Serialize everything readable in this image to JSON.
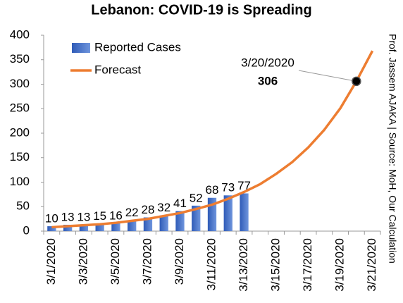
{
  "chart_data": {
    "type": "bar",
    "title": "Lebanon: COVID-19 is Spreading",
    "categories": [
      "3/1/2020",
      null,
      "3/3/2020",
      null,
      "3/5/2020",
      null,
      "3/7/2020",
      null,
      "3/9/2020",
      null,
      "3/11/2020",
      null,
      "3/13/2020",
      null,
      "3/15/2020",
      null,
      "3/17/2020",
      null,
      "3/19/2020",
      null,
      "3/21/2020"
    ],
    "series": [
      {
        "name": "Reported Cases",
        "type": "bar",
        "color": "#4472c4",
        "values": [
          10,
          13,
          13,
          15,
          16,
          22,
          28,
          32,
          41,
          52,
          68,
          73,
          77,
          null,
          null,
          null,
          null,
          null,
          null,
          null,
          null
        ]
      },
      {
        "name": "Forecast",
        "type": "line",
        "color": "#ed7d31",
        "values": [
          8,
          10,
          12,
          14,
          17,
          21,
          25,
          31,
          37,
          45,
          54,
          66,
          80,
          96,
          117,
          141,
          171,
          207,
          251,
          306,
          368
        ]
      }
    ],
    "annotation": {
      "text": "3/20/2020",
      "value": 306
    },
    "source": "Prof. Jassem AJAKA | Source: MoH, Our Calculation",
    "ylim": [
      0,
      400
    ],
    "yticks": [
      0,
      50,
      100,
      150,
      200,
      250,
      300,
      350,
      400
    ],
    "grid": false,
    "legend": "top-left"
  }
}
